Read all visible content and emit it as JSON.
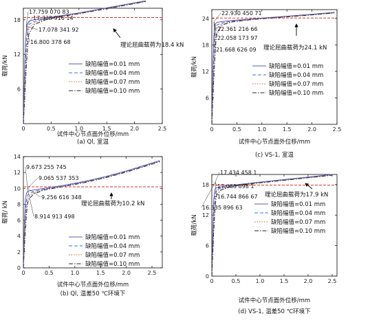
{
  "panels": [
    {
      "id": "a",
      "caption": "(a) Ql, 室温",
      "chart_data": {
        "type": "line",
        "xlabel": "试件中心节点面外位移/mm",
        "ylabel": "载荷/kN",
        "xlim": [
          0,
          2.5
        ],
        "ylim": [
          0,
          20
        ],
        "xticks": [
          "0",
          "0.5",
          "1.0",
          "1.5",
          "2.0",
          "2.5"
        ],
        "yticks": [
          "6",
          "12",
          "18"
        ],
        "ytick_values": [
          6,
          12,
          18
        ],
        "theory": {
          "label": "理论屈曲载荷为18.4 kN",
          "value": 18.4
        },
        "annotations": [
          "17.759 070 83",
          "17.338 916 14",
          "17.078 341 92",
          "16.800 378 68"
        ],
        "series": [
          {
            "name": "缺陷幅值=0.01 mm",
            "color": "#5b5bb8",
            "dash": "",
            "x": [
              0,
              0.02,
              0.04,
              0.06,
              0.08,
              0.1,
              0.2,
              0.4,
              0.7,
              1.0,
              1.4,
              1.8,
              2.2
            ],
            "y": [
              0,
              8.8,
              14.5,
              16.8,
              17.5,
              17.75,
              18.0,
              18.3,
              18.75,
              19.2,
              19.9,
              20.6,
              21.3
            ]
          },
          {
            "name": "缺陷幅值=0.04 mm",
            "color": "#3a6fd8",
            "dash": "5,3",
            "x": [
              0,
              0.02,
              0.04,
              0.06,
              0.08,
              0.1,
              0.2,
              0.4,
              0.7,
              1.0,
              1.4,
              1.8,
              2.2
            ],
            "y": [
              0,
              6.5,
              11.5,
              14.8,
              16.5,
              17.2,
              17.7,
              18.2,
              18.7,
              19.15,
              19.85,
              20.55,
              21.25
            ]
          },
          {
            "name": "缺陷幅值=0.07 mm",
            "color": "#d85a3a",
            "dash": "1.5,2",
            "x": [
              0,
              0.02,
              0.04,
              0.06,
              0.08,
              0.1,
              0.2,
              0.4,
              0.7,
              1.0,
              1.4,
              1.8,
              2.2
            ],
            "y": [
              0,
              5.0,
              9.5,
              13.0,
              15.3,
              16.6,
              17.5,
              18.1,
              18.65,
              19.1,
              19.8,
              20.5,
              21.2
            ]
          },
          {
            "name": "缺陷幅值=0.10 mm",
            "color": "#222222",
            "dash": "6,2,1.5,2",
            "x": [
              0,
              0.02,
              0.04,
              0.06,
              0.08,
              0.1,
              0.2,
              0.4,
              0.7,
              1.0,
              1.4,
              1.8,
              2.2
            ],
            "y": [
              0,
              3.8,
              7.5,
              11.0,
              13.8,
              15.6,
              17.2,
              18.0,
              18.6,
              19.05,
              19.75,
              20.45,
              21.15
            ]
          }
        ]
      }
    },
    {
      "id": "c",
      "caption": "(c) VS-1, 室温",
      "chart_data": {
        "type": "line",
        "xlabel": "试件中心节点面外位移/mm",
        "ylabel": "载荷/kN",
        "xlim": [
          0,
          2.5
        ],
        "ylim": [
          0,
          26
        ],
        "xticks": [
          "0",
          "0.5",
          "1.0",
          "1.5",
          "2.0",
          "2.5"
        ],
        "yticks": [
          "6",
          "12",
          "18",
          "24"
        ],
        "ytick_values": [
          6,
          12,
          18,
          24
        ],
        "theory": {
          "label": "理论屈曲载荷为24.1 kN",
          "value": 24.1
        },
        "annotations": [
          "22.930 450 71",
          "22.361 216 66",
          "22.058 173 97",
          "21.668 626 09"
        ],
        "series": [
          {
            "name": "缺陷幅值=0.01 mm",
            "color": "#5b5bb8",
            "dash": "",
            "x": [
              0,
              0.02,
              0.04,
              0.06,
              0.08,
              0.1,
              0.2,
              0.4,
              0.8,
              1.2,
              1.6,
              2.0,
              2.45
            ],
            "y": [
              0,
              12,
              20,
              22.4,
              22.9,
              23.1,
              23.3,
              23.55,
              23.9,
              24.25,
              24.6,
              24.95,
              25.4
            ]
          },
          {
            "name": "缺陷幅值=0.04 mm",
            "color": "#3a6fd8",
            "dash": "5,3",
            "x": [
              0,
              0.02,
              0.04,
              0.06,
              0.08,
              0.1,
              0.2,
              0.4,
              0.8,
              1.2,
              1.6,
              2.0,
              2.45
            ],
            "y": [
              0,
              9,
              16,
              20.5,
              22.0,
              22.5,
              23.0,
              23.4,
              23.85,
              24.2,
              24.55,
              24.9,
              25.35
            ]
          },
          {
            "name": "缺陷幅值=0.07 mm",
            "color": "#d85a3a",
            "dash": "1.5,2",
            "x": [
              0,
              0.02,
              0.04,
              0.06,
              0.08,
              0.1,
              0.2,
              0.4,
              0.8,
              1.2,
              1.6,
              2.0,
              2.45
            ],
            "y": [
              0,
              7,
              13,
              17.8,
              20.5,
              21.8,
              22.8,
              23.3,
              23.8,
              24.15,
              24.5,
              24.85,
              25.3
            ]
          },
          {
            "name": "缺陷幅值=0.10 mm",
            "color": "#222222",
            "dash": "6,2,1.5,2",
            "x": [
              0,
              0.02,
              0.04,
              0.06,
              0.08,
              0.1,
              0.2,
              0.4,
              0.8,
              1.2,
              1.6,
              2.0,
              2.45
            ],
            "y": [
              0,
              5.5,
              10.5,
              15,
              18.5,
              20.5,
              22.5,
              23.2,
              23.75,
              24.1,
              24.45,
              24.8,
              25.25
            ]
          }
        ]
      }
    },
    {
      "id": "b",
      "caption": "(b) Ql, 温差50 ℃环境下",
      "chart_data": {
        "type": "line",
        "xlabel": "试件中心节点面外位移/mm",
        "ylabel": "载荷/ kN",
        "xlim": [
          0,
          2.7
        ],
        "ylim": [
          0,
          14
        ],
        "xticks": [
          "0",
          "0.5",
          "1.0",
          "1.5",
          "2.0",
          "2.5"
        ],
        "yticks": [
          "0",
          "2",
          "4",
          "6",
          "8",
          "10",
          "12",
          "14"
        ],
        "ytick_values": [
          0,
          2,
          4,
          6,
          8,
          10,
          12,
          14
        ],
        "theory": {
          "label": "理论屈曲载荷为10.2 kN",
          "value": 10.2
        },
        "annotations": [
          "9.673 255 745",
          "9.065 537 353",
          "9.256 616 348",
          "8.914 913 498"
        ],
        "series": [
          {
            "name": "缺陷幅值=0.01 mm",
            "color": "#5b5bb8",
            "dash": "",
            "x": [
              0,
              0.02,
              0.04,
              0.06,
              0.08,
              0.1,
              0.2,
              0.4,
              0.8,
              1.2,
              1.6,
              2.0,
              2.4,
              2.65
            ],
            "y": [
              0,
              5.5,
              8.6,
              9.4,
              9.6,
              9.67,
              9.8,
              10.0,
              10.4,
              10.9,
              11.5,
              12.2,
              13.0,
              13.5
            ]
          },
          {
            "name": "缺陷幅值=0.04 mm",
            "color": "#3a6fd8",
            "dash": "5,3",
            "x": [
              0,
              0.02,
              0.04,
              0.06,
              0.08,
              0.1,
              0.2,
              0.4,
              0.8,
              1.2,
              1.6,
              2.0,
              2.4,
              2.65
            ],
            "y": [
              0,
              4.2,
              7.0,
              8.5,
              9.1,
              9.3,
              9.6,
              9.9,
              10.35,
              10.85,
              11.45,
              12.15,
              12.95,
              13.45
            ]
          },
          {
            "name": "缺陷幅值=0.07 mm",
            "color": "#d85a3a",
            "dash": "1.5,2",
            "x": [
              0,
              0.02,
              0.04,
              0.06,
              0.08,
              0.1,
              0.2,
              0.4,
              0.8,
              1.2,
              1.6,
              2.0,
              2.4,
              2.65
            ],
            "y": [
              0,
              3.4,
              6.0,
              7.7,
              8.6,
              9.0,
              9.45,
              9.85,
              10.3,
              10.8,
              11.4,
              12.1,
              12.9,
              13.4
            ]
          },
          {
            "name": "缺陷幅值=0.10 mm",
            "color": "#222222",
            "dash": "6,2,1.5,2",
            "x": [
              0,
              0.02,
              0.04,
              0.06,
              0.08,
              0.1,
              0.2,
              0.4,
              0.8,
              1.2,
              1.6,
              2.0,
              2.4,
              2.65
            ],
            "y": [
              0,
              2.6,
              4.8,
              6.8,
              8.0,
              8.6,
              9.3,
              9.8,
              10.25,
              10.75,
              11.35,
              12.05,
              12.85,
              13.35
            ]
          }
        ]
      }
    },
    {
      "id": "d",
      "caption": "(d) VS-1, 温差50 ℃环境下",
      "chart_data": {
        "type": "line",
        "xlabel": "试件中心节点面外位移/mm",
        "ylabel": "载荷/kN",
        "xlim": [
          0,
          2.6
        ],
        "ylim": [
          0,
          20
        ],
        "xticks": [
          "0",
          "0.5",
          "1.0",
          "1.5",
          "2.0",
          "2.5"
        ],
        "yticks": [
          "0",
          "6",
          "12",
          "18"
        ],
        "ytick_values": [
          0,
          6,
          12,
          18
        ],
        "theory": {
          "label": "理论屈曲载荷为17.9 kN",
          "value": 17.9
        },
        "annotations": [
          "17.434 458 1",
          "17.038 898 1",
          "16.744 866 67",
          "16.535 896 63"
        ],
        "series": [
          {
            "name": "缺陷幅值=0.01 mm",
            "color": "#5b5bb8",
            "dash": "",
            "x": [
              0,
              0.02,
              0.04,
              0.06,
              0.08,
              0.1,
              0.2,
              0.4,
              0.8,
              1.2,
              1.6,
              2.0,
              2.5
            ],
            "y": [
              0,
              9,
              15,
              16.9,
              17.3,
              17.43,
              17.6,
              17.85,
              18.3,
              18.7,
              19.1,
              19.5,
              20.0
            ]
          },
          {
            "name": "缺陷幅值=0.04 mm",
            "color": "#3a6fd8",
            "dash": "5,3",
            "x": [
              0,
              0.02,
              0.04,
              0.06,
              0.08,
              0.1,
              0.2,
              0.4,
              0.8,
              1.2,
              1.6,
              2.0,
              2.5
            ],
            "y": [
              0,
              7,
              12.5,
              15.3,
              16.6,
              17.04,
              17.4,
              17.75,
              18.25,
              18.65,
              19.05,
              19.45,
              19.95
            ]
          },
          {
            "name": "缺陷幅值=0.07 mm",
            "color": "#d85a3a",
            "dash": "1.5,2",
            "x": [
              0,
              0.02,
              0.04,
              0.06,
              0.08,
              0.1,
              0.2,
              0.4,
              0.8,
              1.2,
              1.6,
              2.0,
              2.5
            ],
            "y": [
              0,
              5.5,
              10.5,
              13.8,
              15.8,
              16.74,
              17.25,
              17.7,
              18.2,
              18.6,
              19.0,
              19.4,
              19.9
            ]
          },
          {
            "name": "缺陷幅值=0.10 mm",
            "color": "#222222",
            "dash": "6,2,1.5,2",
            "x": [
              0,
              0.02,
              0.04,
              0.06,
              0.08,
              0.1,
              0.2,
              0.4,
              0.8,
              1.2,
              1.6,
              2.0,
              2.5
            ],
            "y": [
              0,
              4.5,
              8.8,
              12.3,
              14.8,
              16.0,
              17.0,
              17.6,
              18.15,
              18.55,
              18.95,
              19.35,
              19.85
            ]
          }
        ]
      }
    }
  ]
}
